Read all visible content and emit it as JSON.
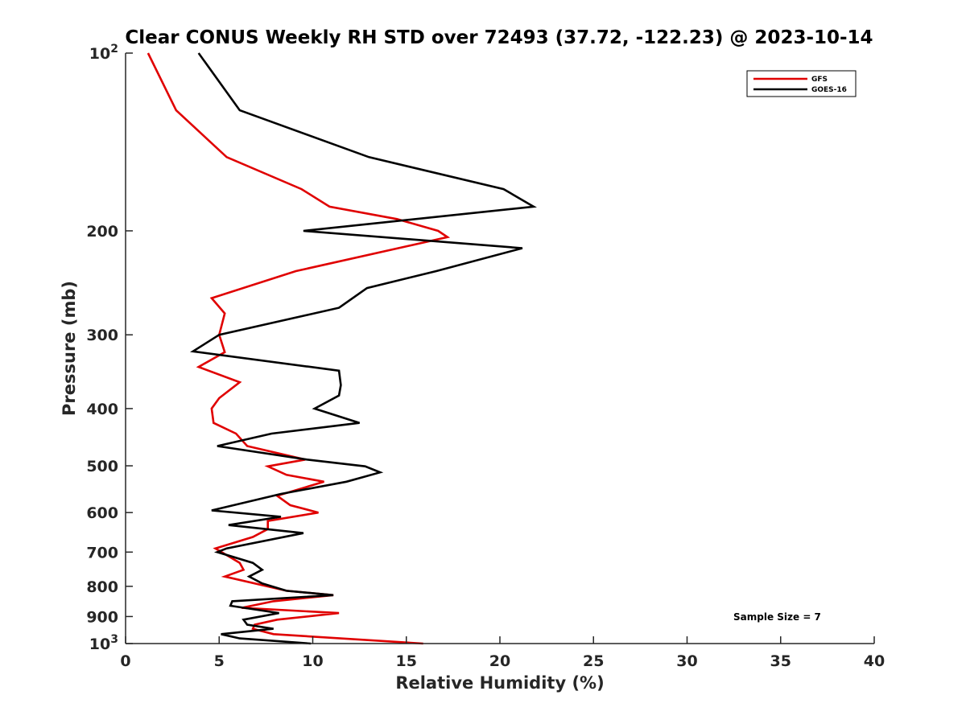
{
  "chart_data": {
    "type": "line",
    "title": "Clear CONUS Weekly RH STD over 72493 (37.72, -122.23) @ 2023-10-14",
    "xlabel": "Relative Humidity (%)",
    "ylabel": "Pressure (mb)",
    "xlim": [
      0,
      40
    ],
    "ylim": [
      100,
      1000
    ],
    "yscale": "log",
    "y_reversed": true,
    "x_ticks": [
      "0",
      "5",
      "10",
      "15",
      "20",
      "25",
      "30",
      "35",
      "40"
    ],
    "x_tick_values": [
      0,
      5,
      10,
      15,
      20,
      25,
      30,
      35,
      40
    ],
    "y_ticks": [
      {
        "value": 100,
        "base": "10",
        "exp": "2"
      },
      {
        "value": 200,
        "label": "200"
      },
      {
        "value": 300,
        "label": "300"
      },
      {
        "value": 400,
        "label": "400"
      },
      {
        "value": 500,
        "label": "500"
      },
      {
        "value": 600,
        "label": "600"
      },
      {
        "value": 700,
        "label": "700"
      },
      {
        "value": 800,
        "label": "800"
      },
      {
        "value": 900,
        "label": "900"
      },
      {
        "value": 1000,
        "base": "10",
        "exp": "3"
      }
    ],
    "grid": false,
    "legend_position": "top-right",
    "annotation": "Sample Size = 7",
    "series": [
      {
        "name": "GFS",
        "color": "#e00000",
        "points": [
          [
            1.2,
            100
          ],
          [
            2.7,
            125
          ],
          [
            5.4,
            150
          ],
          [
            9.4,
            170
          ],
          [
            10.9,
            182
          ],
          [
            14.5,
            191
          ],
          [
            16.7,
            200
          ],
          [
            17.2,
            205
          ],
          [
            9.1,
            234
          ],
          [
            4.6,
            260
          ],
          [
            5.3,
            276
          ],
          [
            5.0,
            300
          ],
          [
            5.3,
            321
          ],
          [
            3.9,
            340
          ],
          [
            6.1,
            361
          ],
          [
            5.0,
            384
          ],
          [
            4.6,
            400
          ],
          [
            4.7,
            423
          ],
          [
            5.9,
            441
          ],
          [
            6.5,
            463
          ],
          [
            9.6,
            488
          ],
          [
            7.6,
            501
          ],
          [
            8.6,
            518
          ],
          [
            10.6,
            532
          ],
          [
            8.1,
            562
          ],
          [
            8.8,
            583
          ],
          [
            10.3,
            600
          ],
          [
            7.6,
            620
          ],
          [
            7.6,
            640
          ],
          [
            6.8,
            660
          ],
          [
            4.8,
            690
          ],
          [
            6.1,
            730
          ],
          [
            6.3,
            750
          ],
          [
            5.3,
            770
          ],
          [
            8.6,
            814
          ],
          [
            11.1,
            828
          ],
          [
            7.9,
            848
          ],
          [
            6.2,
            870
          ],
          [
            11.4,
            888
          ],
          [
            8.1,
            911
          ],
          [
            6.9,
            929
          ],
          [
            6.8,
            944
          ],
          [
            7.9,
            964
          ],
          [
            15.9,
            1000
          ]
        ]
      },
      {
        "name": "GOES-16",
        "color": "#000000",
        "points": [
          [
            3.9,
            100
          ],
          [
            6.1,
            125
          ],
          [
            13.0,
            150
          ],
          [
            20.2,
            170
          ],
          [
            21.8,
            182
          ],
          [
            9.5,
            200
          ],
          [
            21.2,
            214
          ],
          [
            16.6,
            234
          ],
          [
            12.9,
            250
          ],
          [
            11.4,
            270
          ],
          [
            5.0,
            300
          ],
          [
            3.6,
            320
          ],
          [
            11.4,
            345
          ],
          [
            11.5,
            365
          ],
          [
            11.4,
            380
          ],
          [
            10.1,
            400
          ],
          [
            12.5,
            423
          ],
          [
            7.8,
            441
          ],
          [
            4.9,
            463
          ],
          [
            9.7,
            488
          ],
          [
            12.8,
            501
          ],
          [
            13.6,
            513
          ],
          [
            11.8,
            532
          ],
          [
            8.3,
            558
          ],
          [
            4.6,
            595
          ],
          [
            8.3,
            610
          ],
          [
            5.5,
            630
          ],
          [
            9.5,
            650
          ],
          [
            5.4,
            690
          ],
          [
            4.9,
            700
          ],
          [
            6.8,
            730
          ],
          [
            7.3,
            750
          ],
          [
            6.6,
            770
          ],
          [
            7.3,
            791
          ],
          [
            8.6,
            814
          ],
          [
            11.1,
            828
          ],
          [
            5.7,
            848
          ],
          [
            5.6,
            863
          ],
          [
            8.2,
            888
          ],
          [
            6.3,
            911
          ],
          [
            6.5,
            929
          ],
          [
            7.9,
            944
          ],
          [
            5.1,
            964
          ],
          [
            6.1,
            980
          ],
          [
            9.9,
            1000
          ]
        ]
      }
    ]
  }
}
